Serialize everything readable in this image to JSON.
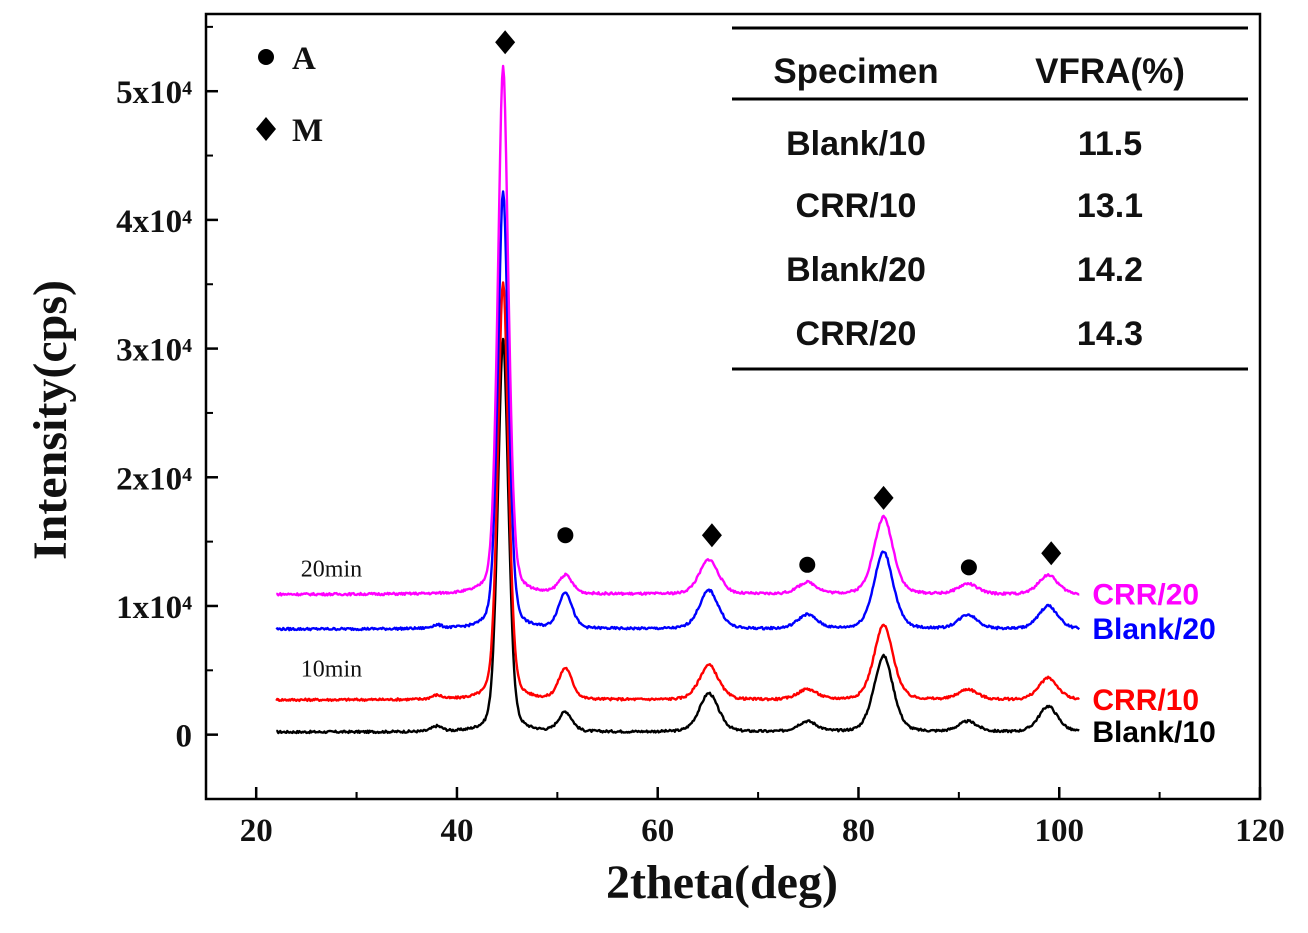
{
  "chart_data": {
    "type": "line",
    "title": "",
    "xlabel": "2theta(deg)",
    "ylabel": "Intensity(cps)",
    "xlim": [
      15,
      120
    ],
    "ylim": [
      -5000,
      56000
    ],
    "xticks": [
      "20",
      "40",
      "60",
      "80",
      "100",
      "120"
    ],
    "yticks": [
      "0",
      "1x10⁴",
      "2x10⁴",
      "3x10⁴",
      "4x10⁴",
      "5x10⁴"
    ],
    "grid": false,
    "legend": [
      {
        "marker": "circle",
        "label": "A"
      },
      {
        "marker": "diamond",
        "label": "M"
      }
    ],
    "series": [
      {
        "name": "Blank/10",
        "color": "#000000",
        "baseline": 200,
        "peaks": [
          [
            38.0,
            400
          ],
          [
            44.6,
            30500
          ],
          [
            50.8,
            1500
          ],
          [
            65.1,
            3000
          ],
          [
            74.9,
            800
          ],
          [
            82.5,
            5900
          ],
          [
            90.9,
            800
          ],
          [
            98.9,
            2000
          ]
        ]
      },
      {
        "name": "CRR/10",
        "color": "#ff0000",
        "baseline": 2700,
        "peaks": [
          [
            38.0,
            300
          ],
          [
            44.6,
            32500
          ],
          [
            50.8,
            2400
          ],
          [
            65.1,
            2700
          ],
          [
            74.9,
            800
          ],
          [
            82.5,
            5800
          ],
          [
            90.9,
            800
          ],
          [
            98.9,
            1700
          ]
        ]
      },
      {
        "name": "Blank/20",
        "color": "#0000ff",
        "baseline": 8200,
        "peaks": [
          [
            38.0,
            250
          ],
          [
            44.6,
            34000
          ],
          [
            50.8,
            2800
          ],
          [
            65.1,
            3000
          ],
          [
            74.9,
            1100
          ],
          [
            82.5,
            6000
          ],
          [
            90.9,
            1100
          ],
          [
            98.9,
            1800
          ]
        ]
      },
      {
        "name": "CRR/20",
        "color": "#ff00ff",
        "baseline": 10900,
        "peaks": [
          [
            44.6,
            41000
          ],
          [
            50.8,
            1400
          ],
          [
            65.1,
            2700
          ],
          [
            74.9,
            900
          ],
          [
            82.5,
            6000
          ],
          [
            90.9,
            800
          ],
          [
            98.9,
            1500
          ]
        ]
      }
    ],
    "peak_markers": [
      {
        "x": 44.8,
        "y": 53800,
        "type": "diamond"
      },
      {
        "x": 50.8,
        "y": 15500,
        "type": "circle"
      },
      {
        "x": 65.4,
        "y": 15500,
        "type": "diamond"
      },
      {
        "x": 74.9,
        "y": 13200,
        "type": "circle"
      },
      {
        "x": 82.5,
        "y": 18400,
        "type": "diamond"
      },
      {
        "x": 91.0,
        "y": 13000,
        "type": "circle"
      },
      {
        "x": 99.2,
        "y": 14100,
        "type": "diamond"
      }
    ],
    "group_labels": [
      {
        "text": "20min",
        "x": 27.5,
        "y": 12300
      },
      {
        "text": "10min",
        "x": 27.5,
        "y": 4500
      }
    ]
  },
  "inset_table": {
    "headers": [
      "Specimen",
      "VFRA(%)"
    ],
    "rows": [
      [
        "Blank/10",
        "11.5"
      ],
      [
        "CRR/10",
        "13.1"
      ],
      [
        "Blank/20",
        "14.2"
      ],
      [
        "CRR/20",
        "14.3"
      ]
    ]
  }
}
